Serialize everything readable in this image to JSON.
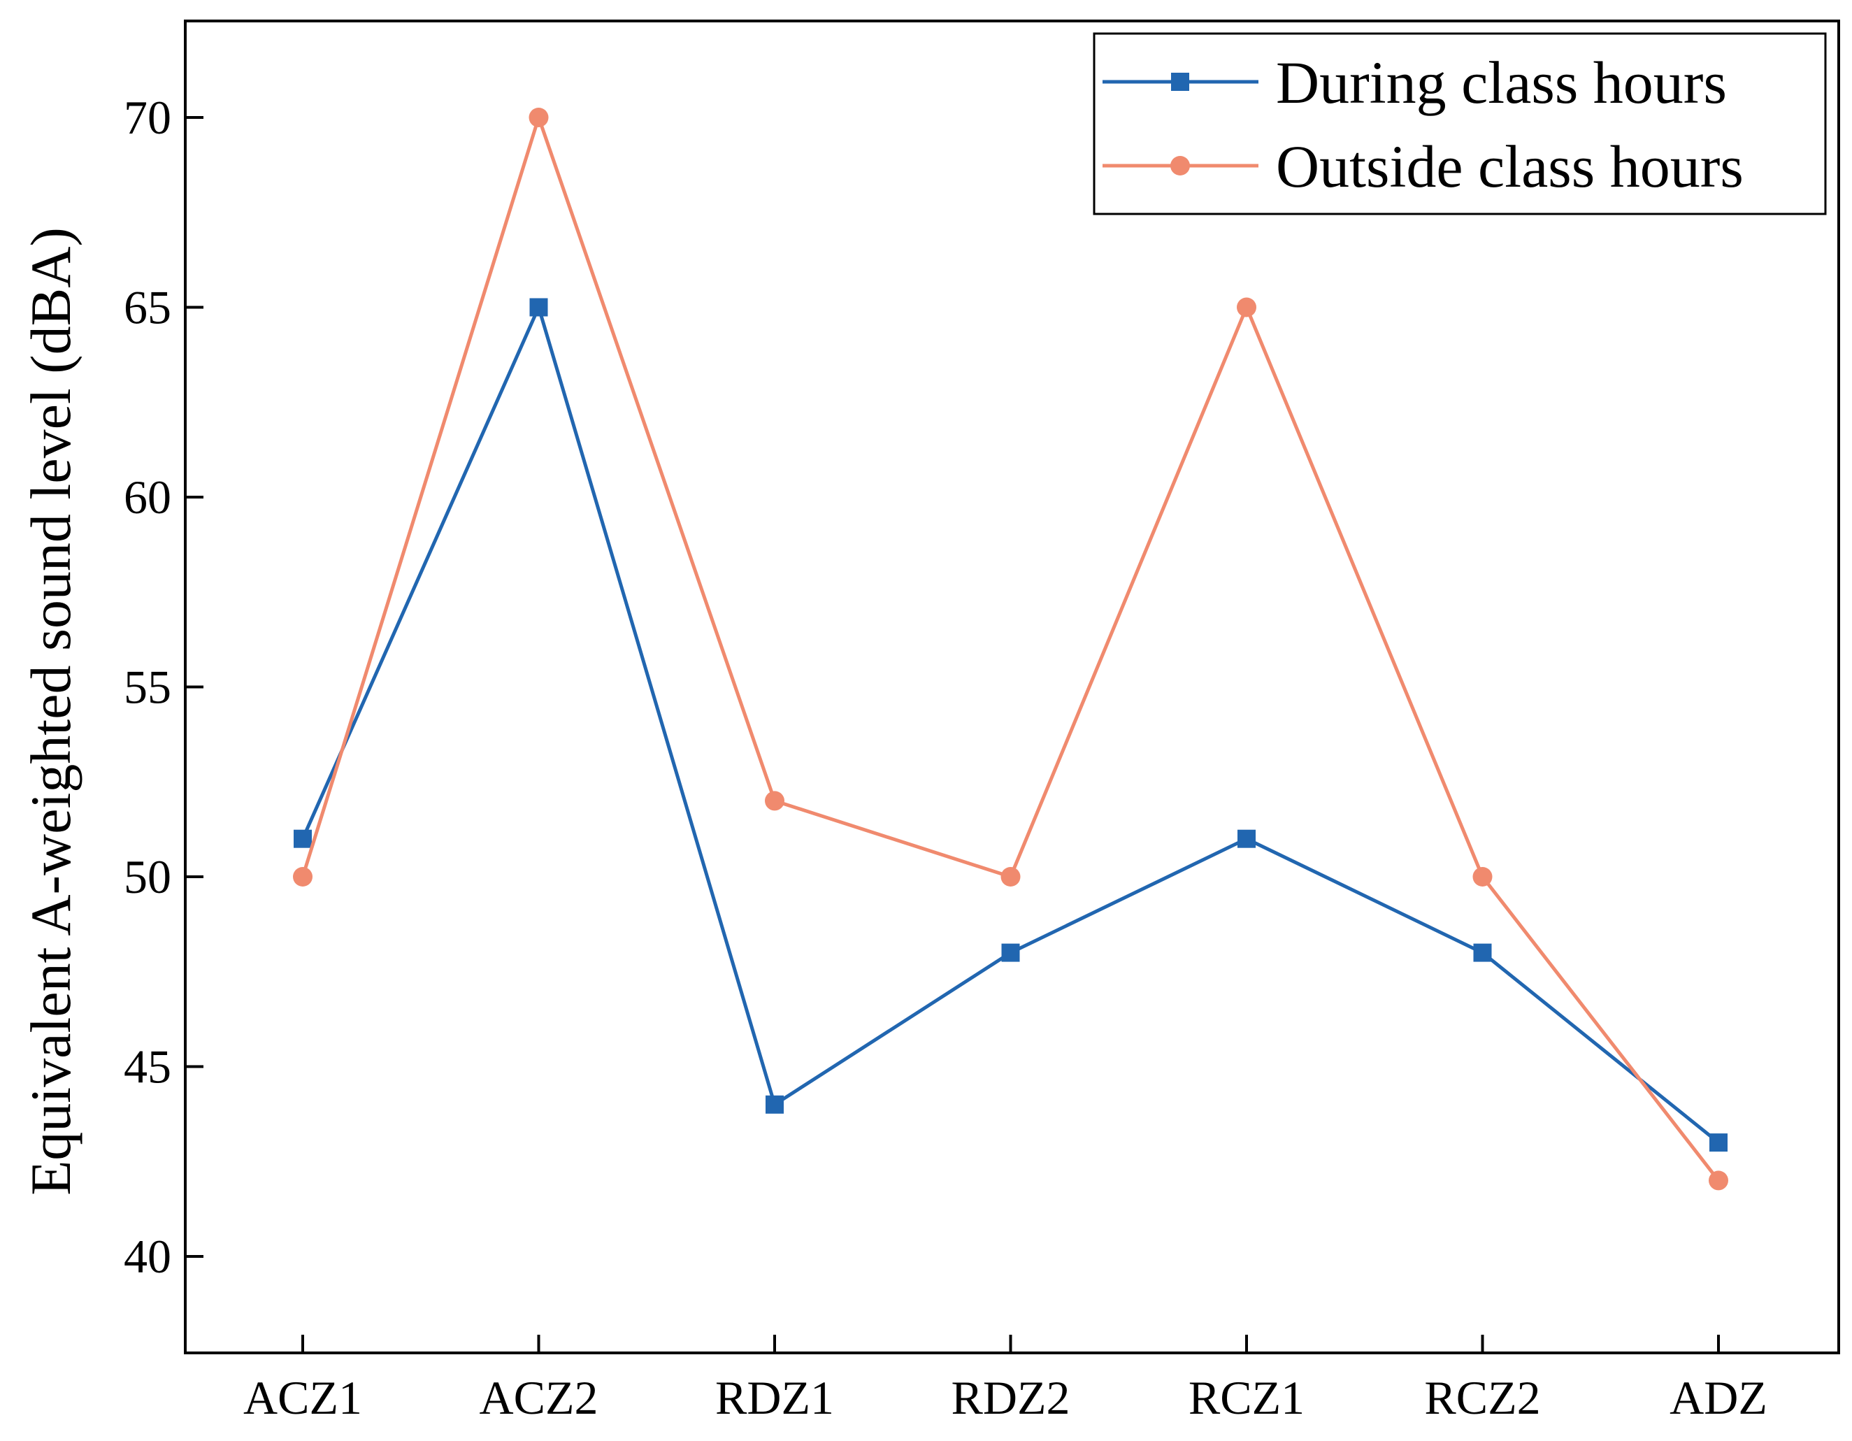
{
  "chart_data": {
    "type": "line",
    "title": "",
    "xlabel": "",
    "ylabel": "Equivalent A-weighted sound level (dBA)",
    "categories": [
      "ACZ1",
      "ACZ2",
      "RDZ1",
      "RDZ2",
      "RCZ1",
      "RCZ2",
      "ADZ"
    ],
    "ylim": [
      37.5,
      72.5
    ],
    "yticks": [
      40,
      45,
      50,
      55,
      60,
      65,
      70
    ],
    "grid": false,
    "legend_position": "top-right",
    "series": [
      {
        "name": "During class hours",
        "color": "#2166b0",
        "marker": "square",
        "values": [
          51,
          65,
          44,
          48,
          51,
          48,
          43
        ]
      },
      {
        "name": "Outside class hours",
        "color": "#f08a6e",
        "marker": "circle",
        "values": [
          50,
          70,
          52,
          50,
          65,
          50,
          42
        ]
      }
    ]
  }
}
